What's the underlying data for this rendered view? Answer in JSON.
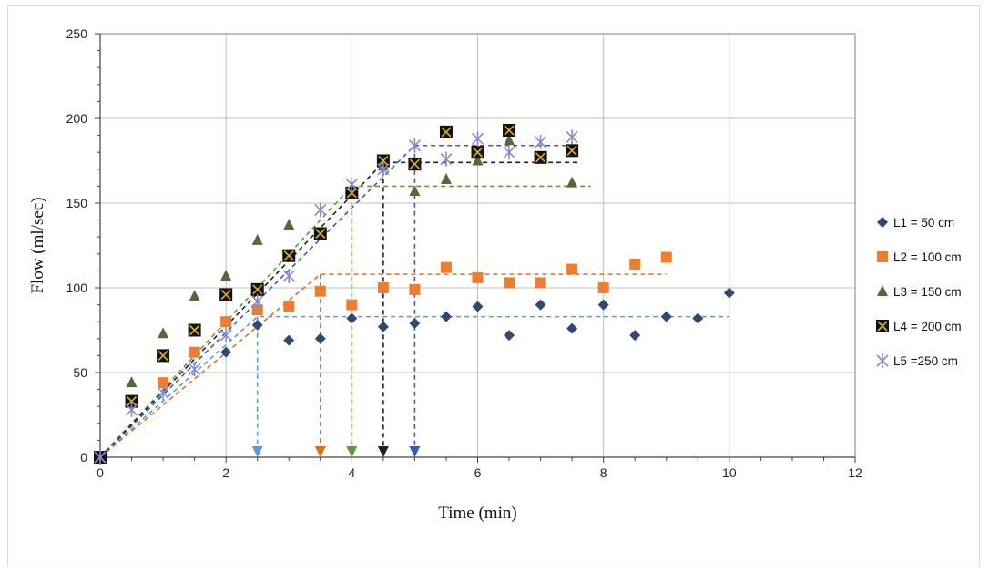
{
  "chart_data": {
    "type": "scatter",
    "xlabel": "Time  (min)",
    "ylabel": "Flow  (ml/sec)",
    "xlim": [
      0,
      12
    ],
    "ylim": [
      0,
      250
    ],
    "xticks": [
      0,
      2,
      4,
      6,
      8,
      10,
      12
    ],
    "yticks": [
      0,
      50,
      100,
      150,
      200,
      250
    ],
    "grid": true,
    "legend_position": "right",
    "series": [
      {
        "name": "L1 = 50 cm",
        "marker": "diamond",
        "color": "#2e4a72",
        "points": [
          [
            0,
            0
          ],
          [
            2,
            62
          ],
          [
            2.5,
            78
          ],
          [
            3,
            69
          ],
          [
            3.5,
            70
          ],
          [
            4,
            82
          ],
          [
            4.5,
            77
          ],
          [
            5,
            79
          ],
          [
            5.5,
            83
          ],
          [
            6,
            89
          ],
          [
            6.5,
            72
          ],
          [
            7,
            90
          ],
          [
            7.5,
            76
          ],
          [
            8,
            90
          ],
          [
            8.5,
            72
          ],
          [
            9,
            83
          ],
          [
            9.5,
            82
          ],
          [
            10,
            97
          ]
        ],
        "trend": [
          [
            0,
            0
          ],
          [
            2.5,
            83
          ],
          [
            10,
            83
          ]
        ],
        "drop_x": 2.5,
        "trend_color": "#5b9bd5"
      },
      {
        "name": "L2 = 100 cm",
        "marker": "square",
        "color": "#ed7d31",
        "points": [
          [
            0,
            0
          ],
          [
            1,
            44
          ],
          [
            1.5,
            62
          ],
          [
            2,
            80
          ],
          [
            2.5,
            87
          ],
          [
            3,
            89
          ],
          [
            3.5,
            98
          ],
          [
            4,
            90
          ],
          [
            4.5,
            100
          ],
          [
            5,
            99
          ],
          [
            5.5,
            112
          ],
          [
            6,
            106
          ],
          [
            6.5,
            103
          ],
          [
            7,
            103
          ],
          [
            7.5,
            111
          ],
          [
            8,
            100
          ],
          [
            8.5,
            114
          ],
          [
            9,
            118
          ]
        ],
        "trend": [
          [
            0,
            0
          ],
          [
            3.5,
            108
          ],
          [
            9,
            108
          ]
        ],
        "drop_x": 3.5,
        "trend_color": "#e07020"
      },
      {
        "name": "L3 = 150 cm",
        "marker": "triangle",
        "color": "#4f6b3a",
        "points": [
          [
            0,
            0
          ],
          [
            0.5,
            44
          ],
          [
            1,
            73
          ],
          [
            1.5,
            95
          ],
          [
            2,
            107
          ],
          [
            2.5,
            128
          ],
          [
            3,
            137
          ],
          [
            3.5,
            132
          ],
          [
            4,
            156
          ],
          [
            4.5,
            172
          ],
          [
            5,
            157
          ],
          [
            5.5,
            164
          ],
          [
            6,
            175
          ],
          [
            6.5,
            187
          ],
          [
            7,
            176
          ],
          [
            7.5,
            162
          ]
        ],
        "trend": [
          [
            0,
            0
          ],
          [
            4,
            160
          ],
          [
            7.8,
            160
          ]
        ],
        "drop_x": 4,
        "trend_color": "#5a9a3a"
      },
      {
        "name": "L4 = 200 cm",
        "marker": "boxx",
        "color": "#111111",
        "points": [
          [
            0,
            0
          ],
          [
            0.5,
            33
          ],
          [
            1,
            60
          ],
          [
            1.5,
            75
          ],
          [
            2,
            96
          ],
          [
            2.5,
            99
          ],
          [
            3,
            119
          ],
          [
            3.5,
            132
          ],
          [
            4,
            156
          ],
          [
            4.5,
            175
          ],
          [
            5,
            173
          ],
          [
            5.5,
            192
          ],
          [
            6,
            180
          ],
          [
            6.5,
            193
          ],
          [
            7,
            177
          ],
          [
            7.5,
            181
          ]
        ],
        "trend": [
          [
            0,
            0
          ],
          [
            4.5,
            174
          ],
          [
            7.6,
            174
          ]
        ],
        "drop_x": 4.5,
        "trend_color": "#222222"
      },
      {
        "name": "L5 =250 cm",
        "marker": "asterisk",
        "color": "#8a86d6",
        "points": [
          [
            0,
            0
          ],
          [
            0.5,
            28
          ],
          [
            1,
            38
          ],
          [
            1.5,
            52
          ],
          [
            2,
            72
          ],
          [
            2.5,
            92
          ],
          [
            3,
            107
          ],
          [
            3.5,
            146
          ],
          [
            4,
            161
          ],
          [
            4.5,
            170
          ],
          [
            5,
            184
          ],
          [
            5.5,
            176
          ],
          [
            6,
            188
          ],
          [
            6.5,
            180
          ],
          [
            7,
            186
          ],
          [
            7.5,
            189
          ]
        ],
        "trend": [
          [
            0,
            0
          ],
          [
            5,
            184
          ],
          [
            7.6,
            184
          ]
        ],
        "drop_x": 5,
        "trend_color": "#3a5cb0"
      }
    ]
  }
}
